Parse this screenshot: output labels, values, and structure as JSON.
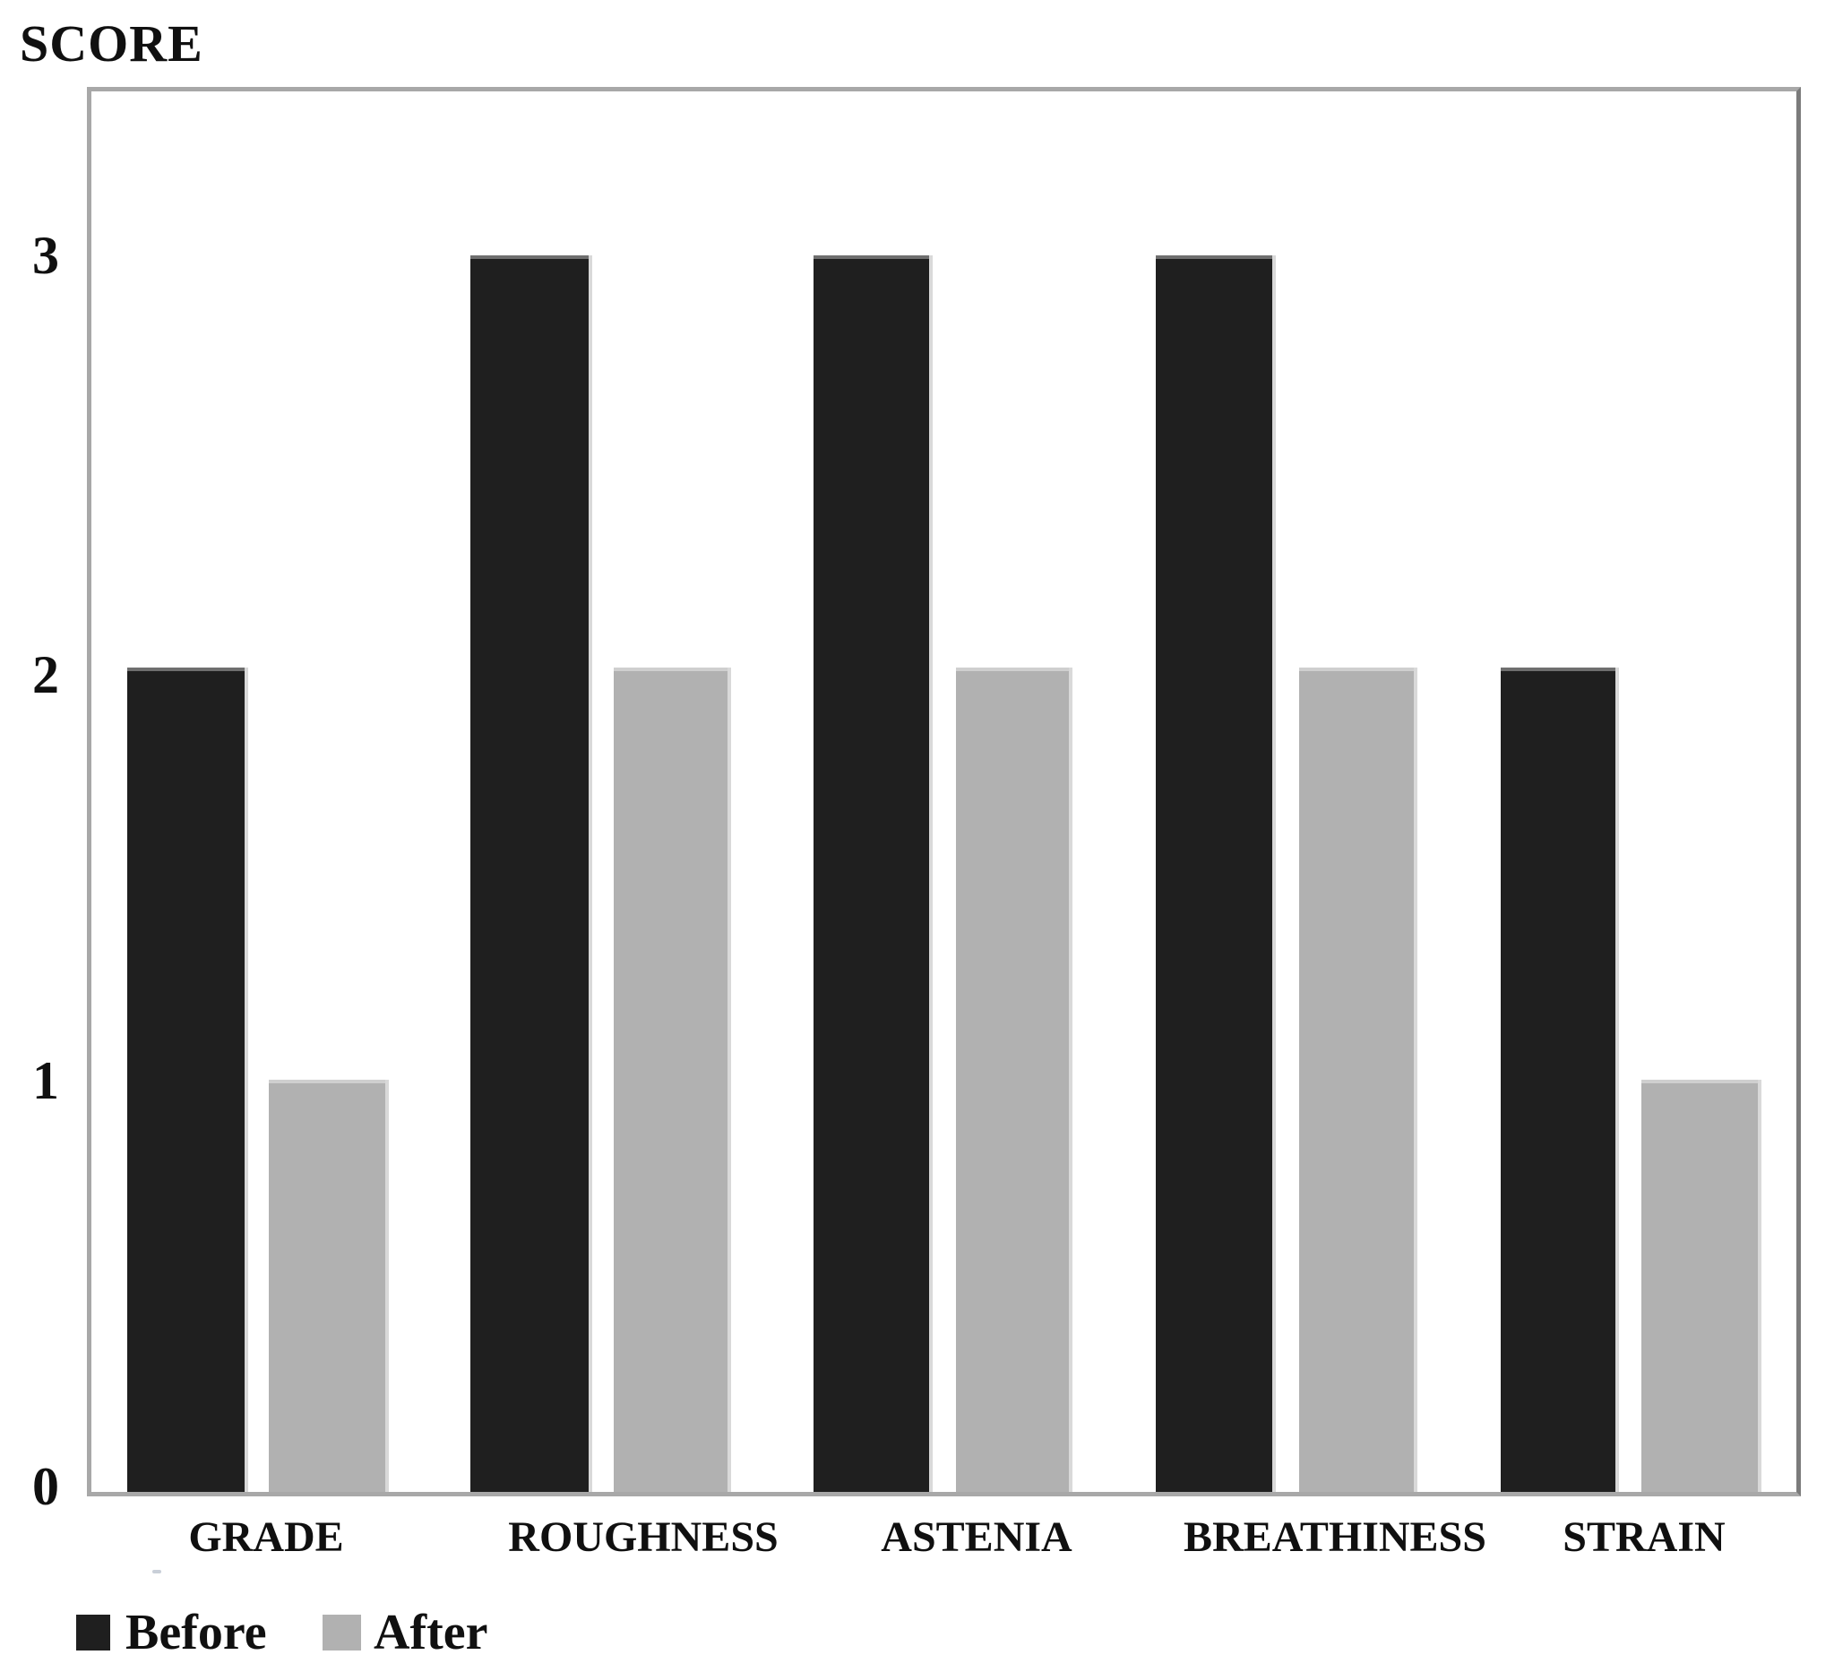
{
  "chart_data": {
    "type": "bar",
    "title": "",
    "ylabel": "SCORE",
    "xlabel": "",
    "categories": [
      "GRADE",
      "ROUGHNESS",
      "ASTENIA",
      "BREATHINESS",
      "STRAIN"
    ],
    "series": [
      {
        "name": "Before",
        "color": "#1f1f1f",
        "values": [
          2,
          3,
          3,
          3,
          2
        ]
      },
      {
        "name": "After",
        "color": "#b1b1b1",
        "values": [
          1,
          2,
          2,
          2,
          1
        ]
      }
    ],
    "yticks": [
      0,
      1,
      2,
      3
    ],
    "ylim": [
      0,
      3.4
    ],
    "grid": false,
    "plot_border_color": "#a8a8a8",
    "legend_position": "bottom-left"
  }
}
